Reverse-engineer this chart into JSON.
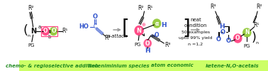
{
  "bg_color": "#ffffff",
  "bottom_bar_color": "#ccff66",
  "bottom_labels": [
    {
      "text": "chemo- & regioselective addition",
      "xf": 0.13,
      "color": "#228B22"
    },
    {
      "text": "keteniminium species",
      "xf": 0.4,
      "color": "#228B22"
    },
    {
      "text": "atom economic",
      "xf": 0.615,
      "color": "#228B22"
    },
    {
      "text": "ketene-N,O-acetals",
      "xf": 0.855,
      "color": "#228B22"
    }
  ],
  "pink": "#ff4d88",
  "green_circle": "#99cc44",
  "blue": "#3355cc",
  "text_black": "#111111",
  "gray_arrow": "#888888"
}
